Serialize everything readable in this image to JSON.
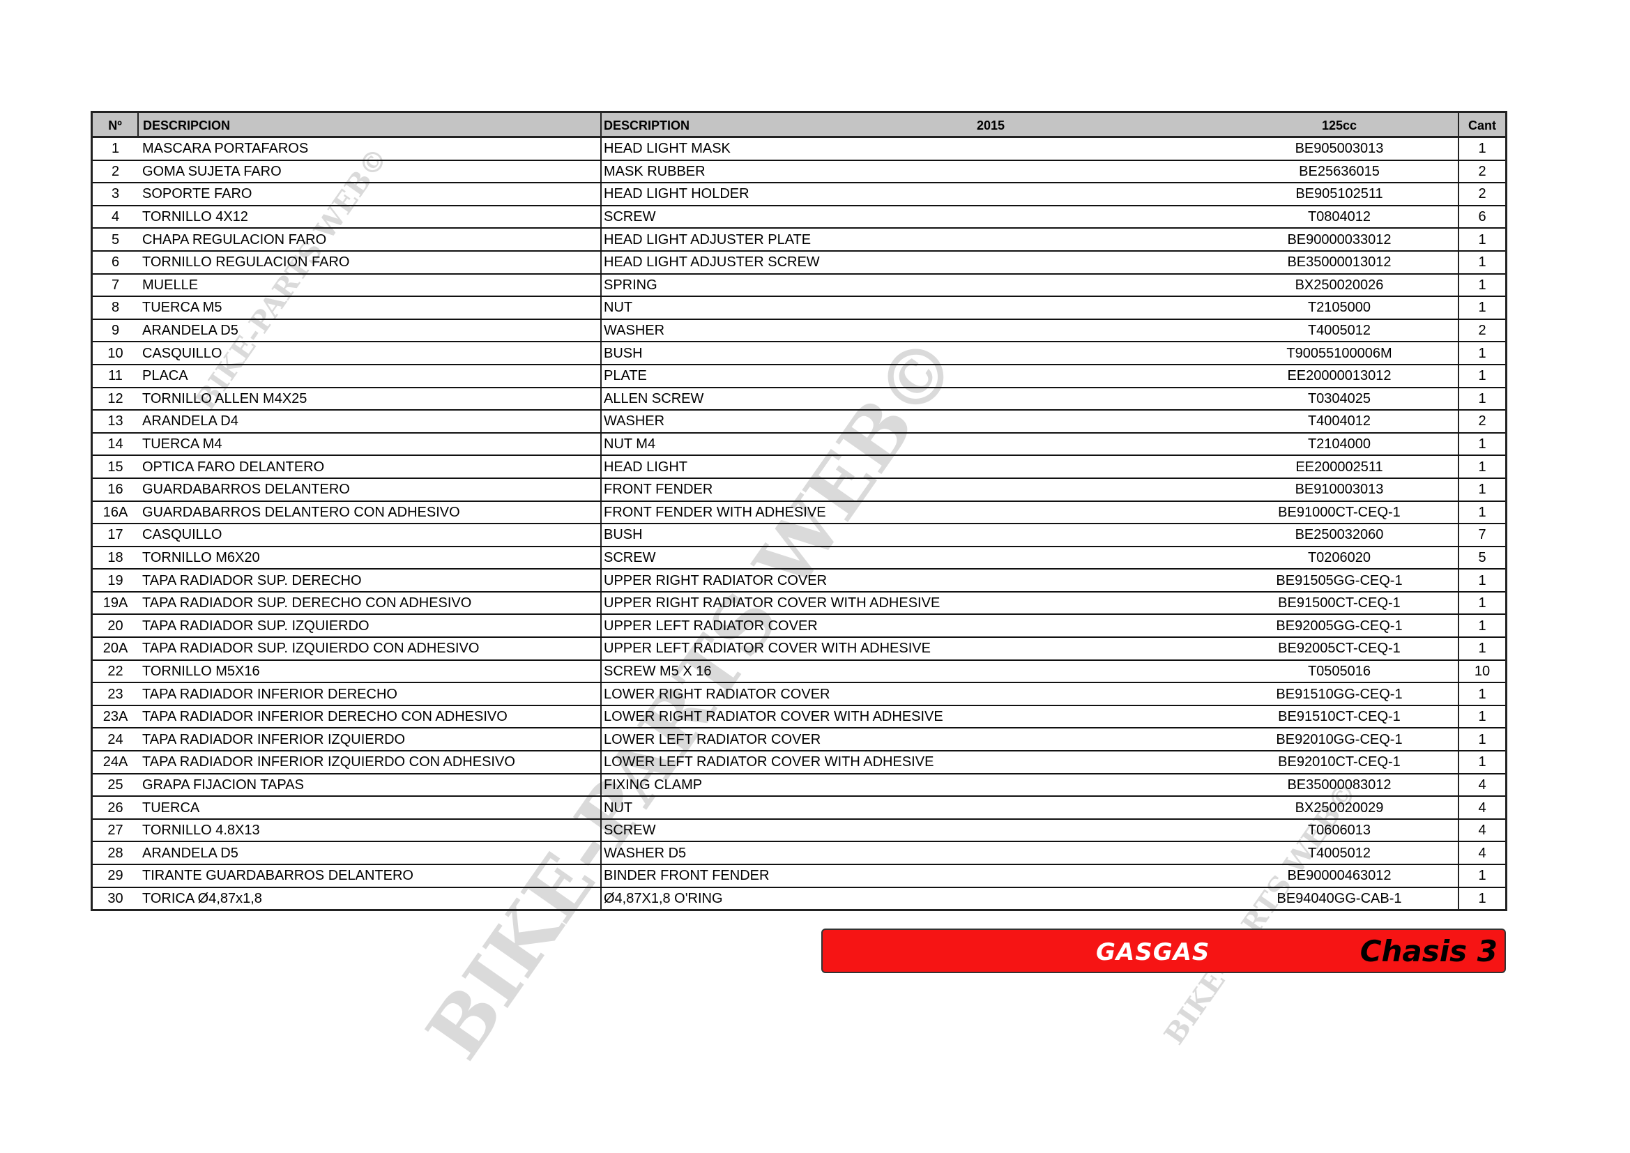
{
  "header": {
    "no": "Nº",
    "descripcion": "DESCRIPCION",
    "description": "DESCRIPTION",
    "year": "2015",
    "model": "125cc",
    "qty": "Cant"
  },
  "rows": [
    {
      "no": "1",
      "es": "MASCARA PORTAFAROS",
      "en": "HEAD LIGHT MASK",
      "ref": "BE905003013",
      "qty": "1"
    },
    {
      "no": "2",
      "es": "GOMA SUJETA FARO",
      "en": "MASK RUBBER",
      "ref": "BE25636015",
      "qty": "2"
    },
    {
      "no": "3",
      "es": "SOPORTE FARO",
      "en": "HEAD LIGHT HOLDER",
      "ref": "BE905102511",
      "qty": "2"
    },
    {
      "no": "4",
      "es": "TORNILLO 4X12",
      "en": "SCREW",
      "ref": "T0804012",
      "qty": "6"
    },
    {
      "no": "5",
      "es": "CHAPA REGULACION FARO",
      "en": "HEAD LIGHT ADJUSTER PLATE",
      "ref": "BE90000033012",
      "qty": "1"
    },
    {
      "no": "6",
      "es": "TORNILLO REGULACION FARO",
      "en": "HEAD LIGHT ADJUSTER SCREW",
      "ref": "BE35000013012",
      "qty": "1"
    },
    {
      "no": "7",
      "es": "MUELLE",
      "en": "SPRING",
      "ref": "BX250020026",
      "qty": "1"
    },
    {
      "no": "8",
      "es": "TUERCA M5",
      "en": "NUT",
      "ref": "T2105000",
      "qty": "1"
    },
    {
      "no": "9",
      "es": "ARANDELA D5",
      "en": "WASHER",
      "ref": "T4005012",
      "qty": "2"
    },
    {
      "no": "10",
      "es": "CASQUILLO",
      "en": "BUSH",
      "ref": "T90055100006M",
      "qty": "1"
    },
    {
      "no": "11",
      "es": "PLACA",
      "en": "PLATE",
      "ref": "EE20000013012",
      "qty": "1"
    },
    {
      "no": "12",
      "es": "TORNILLO ALLEN M4X25",
      "en": "ALLEN SCREW",
      "ref": "T0304025",
      "qty": "1"
    },
    {
      "no": "13",
      "es": "ARANDELA D4",
      "en": "WASHER",
      "ref": "T4004012",
      "qty": "2"
    },
    {
      "no": "14",
      "es": "TUERCA M4",
      "en": "NUT M4",
      "ref": "T2104000",
      "qty": "1"
    },
    {
      "no": "15",
      "es": "OPTICA FARO DELANTERO",
      "en": "HEAD LIGHT",
      "ref": "EE200002511",
      "qty": "1"
    },
    {
      "no": "16",
      "es": "GUARDABARROS DELANTERO",
      "en": "FRONT FENDER",
      "ref": "BE910003013",
      "qty": "1"
    },
    {
      "no": "16A",
      "es": "GUARDABARROS DELANTERO CON ADHESIVO",
      "en": "FRONT FENDER WITH ADHESIVE",
      "ref": "BE91000CT-CEQ-1",
      "qty": "1"
    },
    {
      "no": "17",
      "es": "CASQUILLO",
      "en": "BUSH",
      "ref": "BE250032060",
      "qty": "7"
    },
    {
      "no": "18",
      "es": "TORNILLO M6X20",
      "en": "SCREW",
      "ref": "T0206020",
      "qty": "5"
    },
    {
      "no": "19",
      "es": "TAPA RADIADOR SUP. DERECHO",
      "en": "UPPER RIGHT RADIATOR COVER",
      "ref": "BE91505GG-CEQ-1",
      "qty": "1"
    },
    {
      "no": "19A",
      "es": "TAPA RADIADOR SUP. DERECHO CON ADHESIVO",
      "en": "UPPER RIGHT RADIATOR COVER WITH ADHESIVE",
      "ref": "BE91500CT-CEQ-1",
      "qty": "1"
    },
    {
      "no": "20",
      "es": "TAPA RADIADOR SUP. IZQUIERDO",
      "en": "UPPER LEFT RADIATOR COVER",
      "ref": "BE92005GG-CEQ-1",
      "qty": "1"
    },
    {
      "no": "20A",
      "es": "TAPA RADIADOR SUP. IZQUIERDO CON ADHESIVO",
      "en": "UPPER LEFT RADIATOR COVER WITH ADHESIVE",
      "ref": "BE92005CT-CEQ-1",
      "qty": "1"
    },
    {
      "no": "22",
      "es": "TORNILLO M5X16",
      "en": "SCREW M5 X 16",
      "ref": "T0505016",
      "qty": "10"
    },
    {
      "no": "23",
      "es": "TAPA RADIADOR INFERIOR DERECHO",
      "en": "LOWER RIGHT RADIATOR COVER",
      "ref": "BE91510GG-CEQ-1",
      "qty": "1"
    },
    {
      "no": "23A",
      "es": "TAPA RADIADOR INFERIOR DERECHO CON ADHESIVO",
      "en": "LOWER RIGHT RADIATOR COVER WITH ADHESIVE",
      "ref": "BE91510CT-CEQ-1",
      "qty": "1"
    },
    {
      "no": "24",
      "es": "TAPA RADIADOR INFERIOR IZQUIERDO",
      "en": "LOWER LEFT RADIATOR COVER",
      "ref": "BE92010GG-CEQ-1",
      "qty": "1"
    },
    {
      "no": "24A",
      "es": "TAPA RADIADOR INFERIOR IZQUIERDO CON ADHESIVO",
      "en": "LOWER LEFT RADIATOR COVER WITH ADHESIVE",
      "ref": "BE92010CT-CEQ-1",
      "qty": "1"
    },
    {
      "no": "25",
      "es": "GRAPA FIJACION TAPAS",
      "en": "FIXING CLAMP",
      "ref": "BE35000083012",
      "qty": "4"
    },
    {
      "no": "26",
      "es": "TUERCA",
      "en": "NUT",
      "ref": "BX250020029",
      "qty": "4"
    },
    {
      "no": "27",
      "es": "TORNILLO 4.8X13",
      "en": "SCREW",
      "ref": "T0606013",
      "qty": "4"
    },
    {
      "no": "28",
      "es": "ARANDELA D5",
      "en": "WASHER D5",
      "ref": "T4005012",
      "qty": "4"
    },
    {
      "no": "29",
      "es": "TIRANTE GUARDABARROS DELANTERO",
      "en": "BINDER FRONT FENDER",
      "ref": "BE90000463012",
      "qty": "1"
    },
    {
      "no": "30",
      "es": "TORICA Ø4,87x1,8",
      "en": "Ø4,87X1,8 O'RING",
      "ref": "BE94040GG-CAB-1",
      "qty": "1"
    }
  ],
  "banner": {
    "brand": "GASGAS",
    "section": "Chasis 3",
    "color": "#f61414"
  },
  "watermark": "BIKE-PARTS WEB©"
}
